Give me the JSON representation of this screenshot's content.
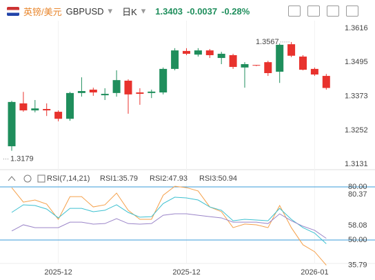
{
  "header": {
    "pair": "英镑/美元",
    "symbol": "GBPUSD",
    "period": "日K",
    "price": "1.3403",
    "change": "-0.0037",
    "change_pct": "-0.28%"
  },
  "chart_data": [
    {
      "type": "candlestick",
      "categories": [
        null,
        null,
        null,
        null,
        "2025-12",
        null,
        null,
        null,
        null,
        null,
        null,
        null,
        null,
        null,
        null,
        "2025-12",
        null,
        null,
        null,
        null,
        null,
        null,
        null,
        null,
        null,
        null,
        "2026-01",
        null
      ],
      "open": [
        1.3195,
        1.3348,
        1.3323,
        1.3328,
        1.3318,
        1.3293,
        1.3385,
        1.3397,
        1.3377,
        1.3385,
        1.3429,
        1.3387,
        1.3385,
        1.3387,
        1.3471,
        1.3535,
        1.3522,
        1.3537,
        1.351,
        1.352,
        1.3476,
        1.3485,
        1.3495,
        1.3461,
        1.3559,
        1.3515,
        1.3471,
        1.3446
      ],
      "high": [
        1.3357,
        1.3389,
        1.336,
        1.3348,
        1.3323,
        1.3389,
        1.3441,
        1.3404,
        1.3402,
        1.3466,
        1.3434,
        1.3402,
        1.3397,
        1.3476,
        1.3545,
        1.3545,
        1.3545,
        1.3542,
        1.3532,
        1.3525,
        1.3495,
        1.3485,
        1.35,
        1.3562,
        1.3567,
        1.352,
        1.3476,
        1.3453
      ],
      "low": [
        1.3179,
        1.3318,
        1.3316,
        1.3303,
        1.3284,
        1.3286,
        1.3372,
        1.3375,
        1.336,
        1.3372,
        1.3311,
        1.3343,
        1.3367,
        1.338,
        1.3466,
        1.352,
        1.3515,
        1.351,
        1.3488,
        1.3471,
        1.3404,
        1.3481,
        1.3446,
        1.3421,
        1.3513,
        1.3466,
        1.3446,
        1.3397
      ],
      "close": [
        1.3353,
        1.3323,
        1.333,
        1.3323,
        1.3293,
        1.3385,
        1.3392,
        1.3387,
        1.3382,
        1.3431,
        1.338,
        1.3382,
        1.339,
        1.3471,
        1.3537,
        1.3525,
        1.3537,
        1.352,
        1.3525,
        1.3478,
        1.3488,
        1.3483,
        1.3456,
        1.3557,
        1.3518,
        1.3468,
        1.3451,
        1.3403
      ],
      "up_color": "#1f8e5c",
      "down_color": "#e8322d",
      "ylim": [
        1.3114,
        1.3643
      ],
      "yticks": [
        1.3616,
        1.3495,
        1.3373,
        1.3252,
        1.3131
      ],
      "annotations": [
        {
          "label": "1.3567",
          "value": 1.3567
        },
        {
          "label": "1.3179",
          "value": 1.3179
        }
      ]
    },
    {
      "type": "line",
      "title": "RSI(7,14,21)",
      "ylim": [
        31.7,
        88.2
      ],
      "yticks": [
        {
          "value": 80,
          "label": "80.00"
        },
        {
          "value": 50,
          "label": "50.00"
        }
      ],
      "axis_marks": [
        80.37,
        58.08,
        35.79
      ],
      "series": [
        {
          "name": "RSI1",
          "label": "RSI1:35.79",
          "color": "#f5a04a",
          "values": [
            79.6,
            71.4,
            72.6,
            70.3,
            61.7,
            74.5,
            74.5,
            68.7,
            69.9,
            76.5,
            66.8,
            61.7,
            61.7,
            75.3,
            80.37,
            79.6,
            77.7,
            68.7,
            66.0,
            57.0,
            59.0,
            58.6,
            57.0,
            69.5,
            57.0,
            47.3,
            43.4,
            35.79
          ]
        },
        {
          "name": "RSI2",
          "label": "RSI2:47.93",
          "color": "#3cc0d0",
          "values": [
            65.6,
            69.9,
            69.5,
            67.5,
            62.5,
            67.9,
            67.9,
            66.0,
            66.8,
            69.9,
            65.6,
            62.9,
            63.2,
            70.6,
            74.2,
            73.8,
            72.6,
            68.7,
            66.8,
            60.9,
            61.7,
            61.3,
            60.9,
            67.9,
            61.7,
            57.0,
            53.9,
            47.93
          ]
        },
        {
          "name": "RSI3",
          "label": "RSI3:50.94",
          "color": "#9a84c8",
          "values": [
            55.1,
            58.6,
            57.0,
            57.0,
            57.0,
            60.1,
            60.1,
            59.0,
            59.3,
            62.1,
            59.3,
            59.0,
            59.3,
            64.0,
            64.8,
            64.8,
            64.0,
            63.2,
            62.5,
            60.1,
            60.1,
            60.1,
            59.3,
            64.8,
            60.9,
            57.8,
            55.5,
            50.94
          ]
        }
      ]
    }
  ]
}
